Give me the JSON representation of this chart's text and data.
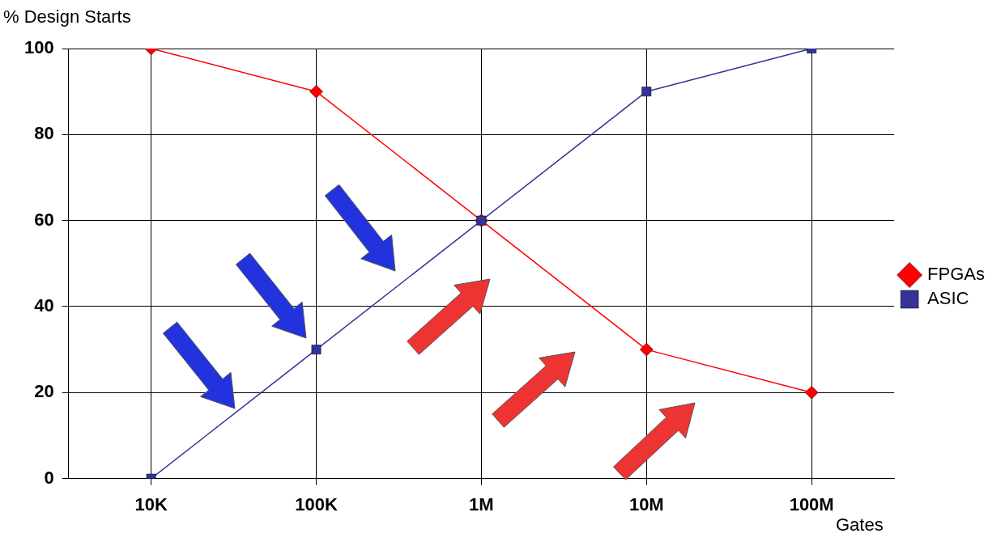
{
  "chart_data": {
    "type": "line",
    "ylabel": "% Design Starts",
    "xlabel": "Gates",
    "categories": [
      "10K",
      "100K",
      "1M",
      "10M",
      "100M"
    ],
    "series": [
      {
        "name": "FPGAs",
        "color": "#ff0000",
        "marker": "diamond",
        "values": [
          100,
          90,
          60,
          30,
          20
        ]
      },
      {
        "name": "ASIC",
        "color": "#333399",
        "marker": "square",
        "values": [
          0,
          30,
          60,
          90,
          100
        ]
      }
    ],
    "ylim": [
      0,
      100
    ],
    "yticks": [
      0,
      20,
      40,
      60,
      80,
      100
    ],
    "grid": true,
    "legend": "right"
  }
}
